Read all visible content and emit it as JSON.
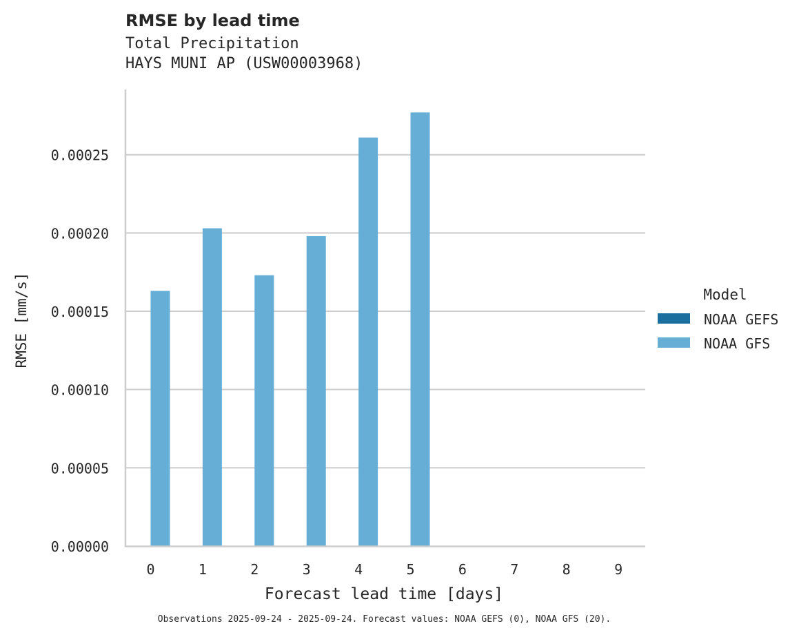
{
  "header": {
    "title": "RMSE by lead time",
    "subtitle_line1": "Total Precipitation",
    "subtitle_line2": "HAYS MUNI AP (USW00003968)"
  },
  "axes": {
    "xlabel": "Forecast lead time [days]",
    "ylabel": "RMSE [mm/s]",
    "yticks": [
      "0.00000",
      "0.00005",
      "0.00010",
      "0.00015",
      "0.00020",
      "0.00025"
    ],
    "xticks": [
      "0",
      "1",
      "2",
      "3",
      "4",
      "5",
      "6",
      "7",
      "8",
      "9"
    ]
  },
  "legend": {
    "title": "Model",
    "items": [
      {
        "label": "NOAA GEFS",
        "color": "#1a6e9e"
      },
      {
        "label": "NOAA GFS",
        "color": "#67aed6"
      }
    ]
  },
  "footer": {
    "note": "Observations 2025-09-24 - 2025-09-24. Forecast values: NOAA GEFS (0), NOAA GFS (20)."
  },
  "chart_data": {
    "type": "bar",
    "title": "RMSE by lead time",
    "subtitle": "Total Precipitation — HAYS MUNI AP (USW00003968)",
    "xlabel": "Forecast lead time [days]",
    "ylabel": "RMSE [mm/s]",
    "categories": [
      "0",
      "1",
      "2",
      "3",
      "4",
      "5",
      "6",
      "7",
      "8",
      "9"
    ],
    "series": [
      {
        "name": "NOAA GEFS",
        "color": "#1a6e9e",
        "values": [
          null,
          null,
          null,
          null,
          null,
          null,
          null,
          null,
          null,
          null
        ]
      },
      {
        "name": "NOAA GFS",
        "color": "#67aed6",
        "values": [
          0.000163,
          0.000203,
          0.000173,
          0.000198,
          0.000261,
          0.000277,
          null,
          null,
          null,
          null
        ]
      }
    ],
    "ylim": [
      0,
      0.000285
    ],
    "yticks": [
      0,
      5e-05,
      0.0001,
      0.00015,
      0.0002,
      0.00025
    ],
    "grid": "horizontal",
    "legend_position": "right",
    "legend_title": "Model"
  }
}
